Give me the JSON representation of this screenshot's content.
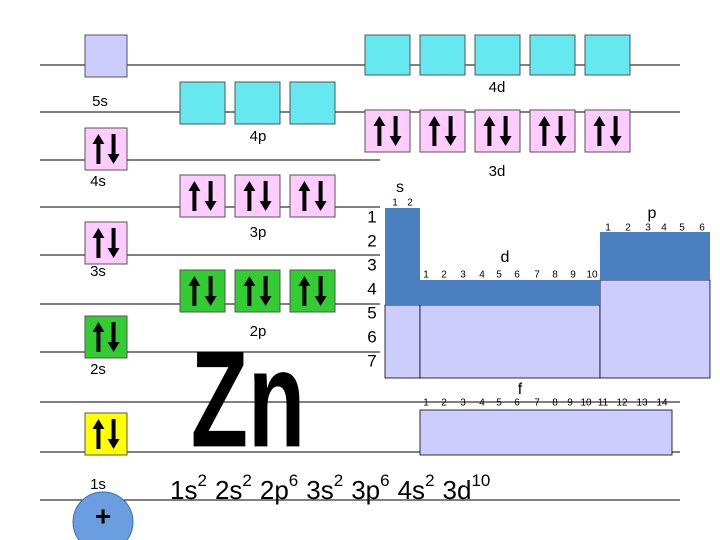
{
  "orbitals": [
    "5s",
    "4d",
    "4p",
    "4s",
    "3d",
    "3p",
    "3s",
    "2p",
    "2s",
    "1s"
  ],
  "element": "Zn",
  "nucleus": "+",
  "periods": [
    "1",
    "2",
    "3",
    "4",
    "5",
    "6",
    "7"
  ],
  "blocks": {
    "s": {
      "label": "s",
      "columns": [
        "1",
        "2"
      ]
    },
    "p": {
      "label": "p",
      "columns": [
        "1",
        "2",
        "3",
        "4",
        "5",
        "6"
      ]
    },
    "d": {
      "label": "d",
      "columns": [
        "1",
        "2",
        "3",
        "4",
        "5",
        "6",
        "7",
        "8",
        "9",
        "10"
      ]
    },
    "f": {
      "label": "f",
      "columns": [
        "1",
        "2",
        "3",
        "4",
        "5",
        "6",
        "7",
        "8",
        "9",
        "10",
        "11",
        "12",
        "13",
        "14"
      ]
    }
  },
  "configuration": [
    {
      "orbital": "1s",
      "electrons": "2"
    },
    {
      "orbital": "2s",
      "electrons": "2"
    },
    {
      "orbital": "2p",
      "electrons": "6"
    },
    {
      "orbital": "3s",
      "electrons": "2"
    },
    {
      "orbital": "3p",
      "electrons": "6"
    },
    {
      "orbital": "4s",
      "electrons": "2"
    },
    {
      "orbital": "3d",
      "electrons": "10"
    }
  ]
}
